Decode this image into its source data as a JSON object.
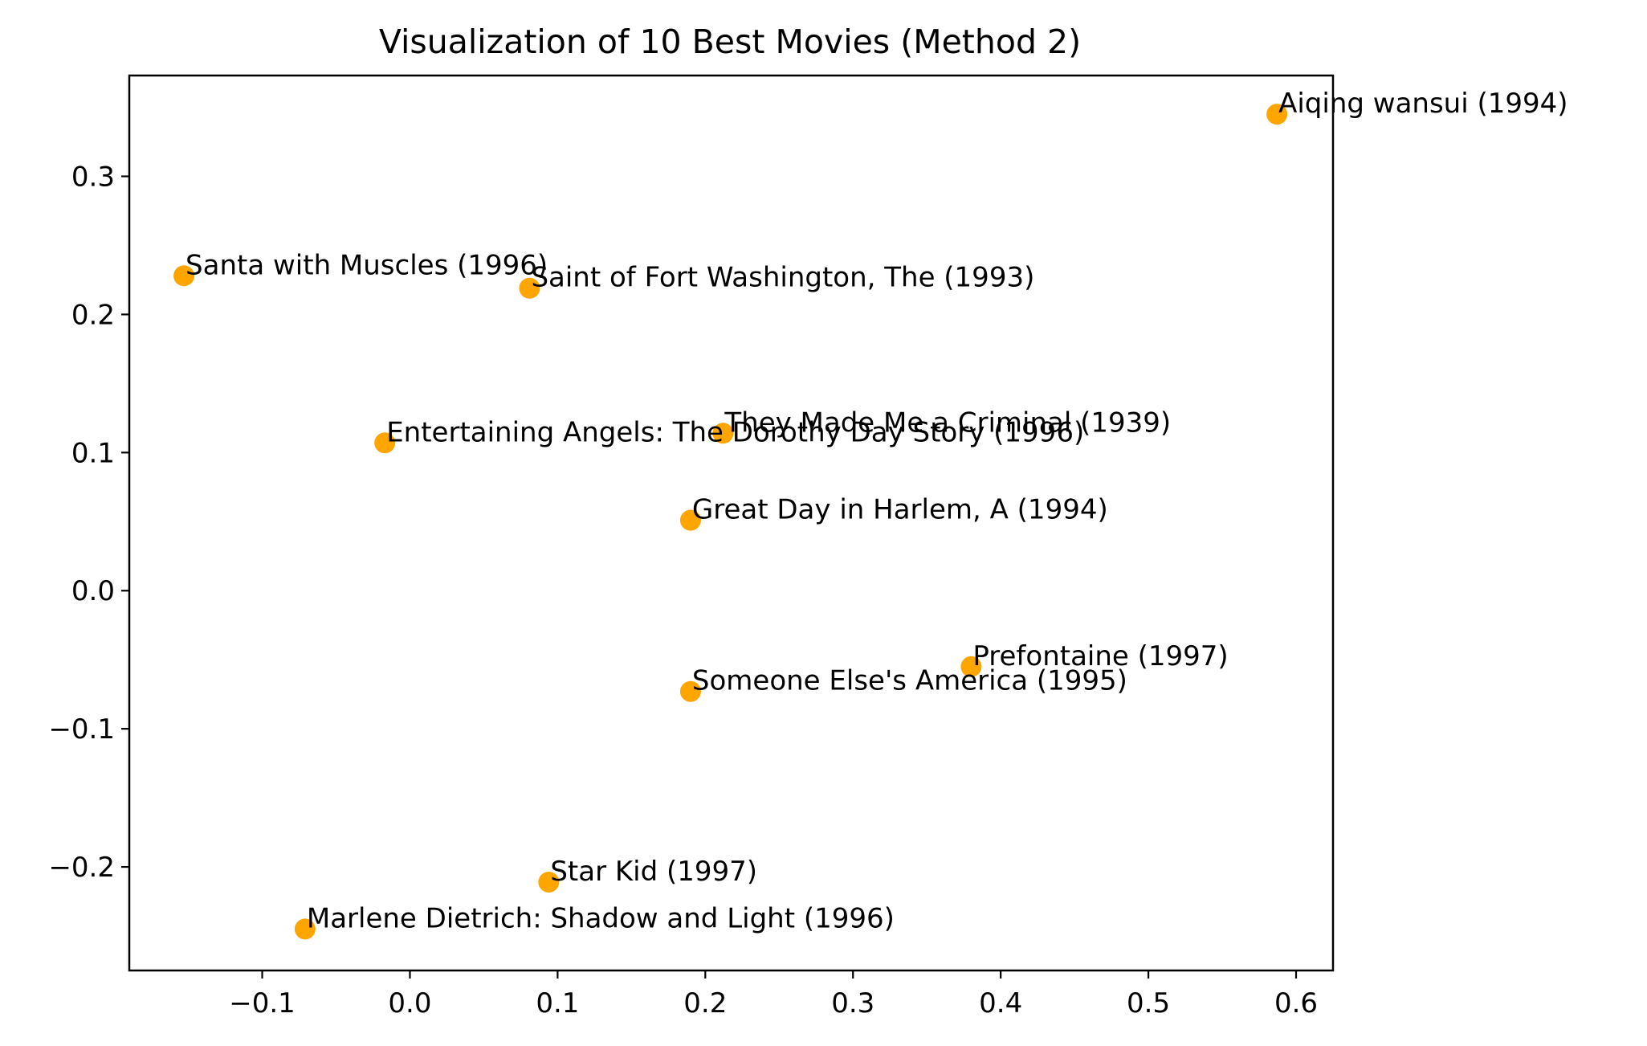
{
  "chart_data": {
    "type": "scatter",
    "title": "Visualization of 10 Best Movies (Method 2)",
    "xlabel": "",
    "ylabel": "",
    "xlim": [
      -0.19,
      0.625
    ],
    "ylim": [
      -0.275,
      0.373
    ],
    "xticks": [
      -0.1,
      0.0,
      0.1,
      0.2,
      0.3,
      0.4,
      0.5,
      0.6
    ],
    "xtick_labels": [
      "−0.1",
      "0.0",
      "0.1",
      "0.2",
      "0.3",
      "0.4",
      "0.5",
      "0.6"
    ],
    "yticks": [
      -0.2,
      -0.1,
      0.0,
      0.1,
      0.2,
      0.3
    ],
    "ytick_labels": [
      "−0.2",
      "−0.1",
      "0.0",
      "0.1",
      "0.2",
      "0.3"
    ],
    "grid": false,
    "marker_color": "#ffa500",
    "points": [
      {
        "label": "Aiqing wansui (1994)",
        "x": 0.587,
        "y": 0.345
      },
      {
        "label": "Santa with Muscles (1996)",
        "x": -0.153,
        "y": 0.228
      },
      {
        "label": "Saint of Fort Washington, The (1993)",
        "x": 0.081,
        "y": 0.219
      },
      {
        "label": "They Made Me a Criminal (1939)",
        "x": 0.212,
        "y": 0.114
      },
      {
        "label": "Entertaining Angels: The Dorothy Day Story (1996)",
        "x": -0.017,
        "y": 0.107
      },
      {
        "label": "Great Day in Harlem, A (1994)",
        "x": 0.19,
        "y": 0.051
      },
      {
        "label": "Prefontaine (1997)",
        "x": 0.38,
        "y": -0.055
      },
      {
        "label": "Someone Else's America (1995)",
        "x": 0.19,
        "y": -0.073
      },
      {
        "label": "Star Kid (1997)",
        "x": 0.094,
        "y": -0.211
      },
      {
        "label": "Marlene Dietrich: Shadow and Light (1996)",
        "x": -0.071,
        "y": -0.245
      }
    ]
  }
}
